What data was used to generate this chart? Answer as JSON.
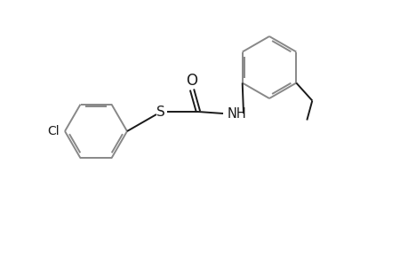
{
  "bg_color": "#ffffff",
  "line_color": "#1a1a1a",
  "ring_color": "#888888",
  "fig_width": 4.6,
  "fig_height": 3.0,
  "dpi": 100,
  "xlim": [
    0,
    4.6
  ],
  "ylim": [
    0,
    3.0
  ]
}
